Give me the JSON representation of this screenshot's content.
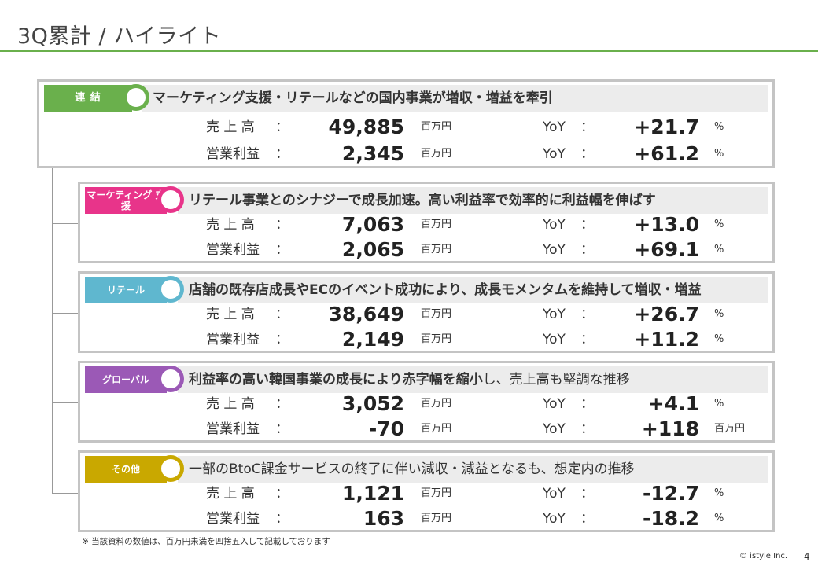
{
  "page": {
    "title": "3Q累計 / ハイライト",
    "note": "※ 当該資料の数値は、百万円未満を四捨五入して記載しております",
    "copyright": "© istyle Inc.",
    "page_number": "4"
  },
  "colors": {
    "title_rule": "#6ab04c",
    "consolidated": "#6ab04c",
    "marketing": "#e8348a",
    "retail": "#5fb7cf",
    "global": "#9b59b6",
    "other": "#c9a800"
  },
  "sections": [
    {
      "key": "consolidated",
      "tag": "連 結",
      "headline_bold": "マーケティング支援・リテールなどの国内事業が増収・増益を牽引",
      "headline_normal": "",
      "rows": [
        {
          "label": "売 上 高",
          "colon": "：",
          "value": "49,885",
          "unit": "百万円",
          "yoy_label": "YoY",
          "yoy_colon": "：",
          "yoy_value": "+21.7",
          "yoy_unit": "%"
        },
        {
          "label": "営業利益",
          "colon": "：",
          "value": "2,345",
          "unit": "百万円",
          "yoy_label": "YoY",
          "yoy_colon": "：",
          "yoy_value": "+61.2",
          "yoy_unit": "%"
        }
      ]
    },
    {
      "key": "marketing",
      "tag": "マーケティング 支援",
      "headline_bold": "リテール事業とのシナジーで成長加速。高い利益率で効率的に利益幅を伸ばす",
      "headline_normal": "",
      "rows": [
        {
          "label": "売 上 高",
          "colon": "：",
          "value": "7,063",
          "unit": "百万円",
          "yoy_label": "YoY",
          "yoy_colon": "：",
          "yoy_value": "+13.0",
          "yoy_unit": "%"
        },
        {
          "label": "営業利益",
          "colon": "：",
          "value": "2,065",
          "unit": "百万円",
          "yoy_label": "YoY",
          "yoy_colon": "：",
          "yoy_value": "+69.1",
          "yoy_unit": "%"
        }
      ]
    },
    {
      "key": "retail",
      "tag": "リテール",
      "headline_bold": "店舗の既存店成長やECのイベント成功により、成長モメンタムを維持して増収・増益",
      "headline_normal": "",
      "rows": [
        {
          "label": "売 上 高",
          "colon": "：",
          "value": "38,649",
          "unit": "百万円",
          "yoy_label": "YoY",
          "yoy_colon": "：",
          "yoy_value": "+26.7",
          "yoy_unit": "%"
        },
        {
          "label": "営業利益",
          "colon": "：",
          "value": "2,149",
          "unit": "百万円",
          "yoy_label": "YoY",
          "yoy_colon": "：",
          "yoy_value": "+11.2",
          "yoy_unit": "%"
        }
      ]
    },
    {
      "key": "global",
      "tag": "グローバル",
      "headline_bold": "利益率の高い韓国事業の成長により赤字幅を縮小",
      "headline_normal": "し、売上高も堅調な推移",
      "rows": [
        {
          "label": "売 上 高",
          "colon": "：",
          "value": "3,052",
          "unit": "百万円",
          "yoy_label": "YoY",
          "yoy_colon": "：",
          "yoy_value": "+4.1",
          "yoy_unit": "%"
        },
        {
          "label": "営業利益",
          "colon": "：",
          "value": "-70",
          "unit": "百万円",
          "yoy_label": "YoY",
          "yoy_colon": "：",
          "yoy_value": "+118",
          "yoy_unit": "百万円"
        }
      ]
    },
    {
      "key": "other",
      "tag": "その他",
      "headline_bold": "",
      "headline_normal": "一部のBtoC課金サービスの終了に伴い減収・減益となるも、想定内の推移",
      "rows": [
        {
          "label": "売 上 高",
          "colon": "：",
          "value": "1,121",
          "unit": "百万円",
          "yoy_label": "YoY",
          "yoy_colon": "：",
          "yoy_value": "-12.7",
          "yoy_unit": "%"
        },
        {
          "label": "営業利益",
          "colon": "：",
          "value": "163",
          "unit": "百万円",
          "yoy_label": "YoY",
          "yoy_colon": "：",
          "yoy_value": "-18.2",
          "yoy_unit": "%"
        }
      ]
    }
  ]
}
